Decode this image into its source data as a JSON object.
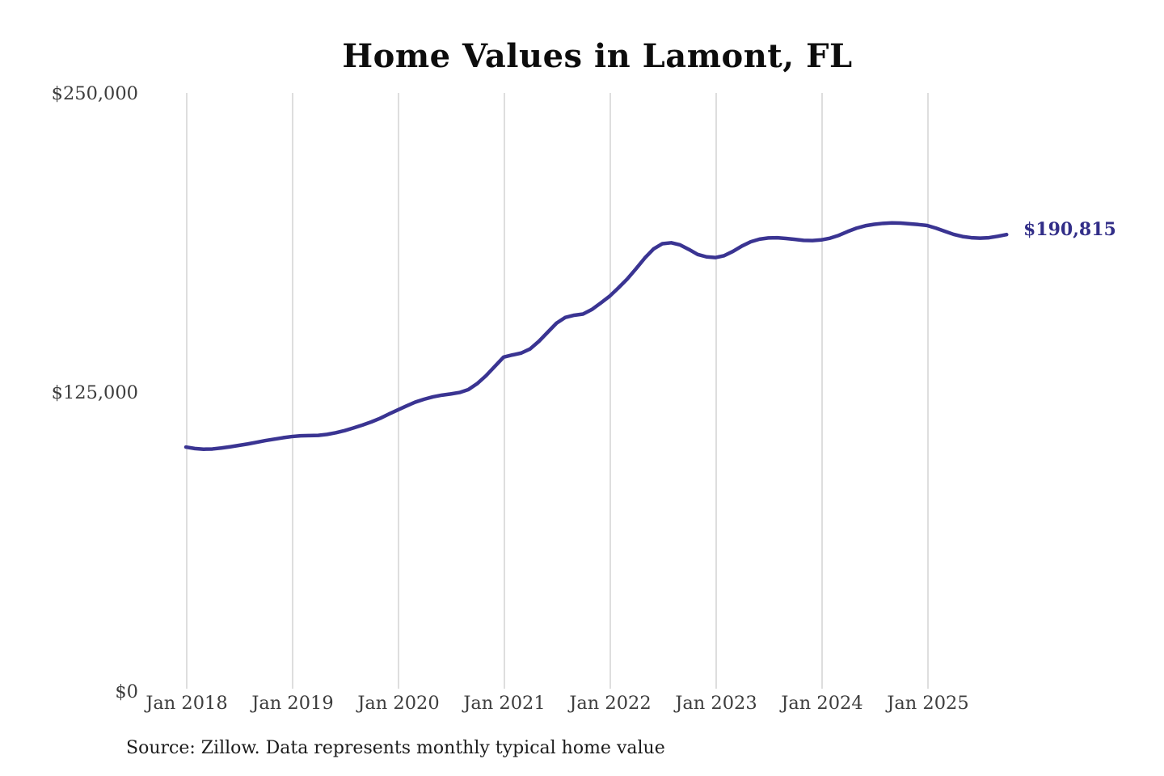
{
  "chart": {
    "background_color": "#ffffff",
    "gridline_color": "#cccccc",
    "tick_label_color": "#3d3d3d",
    "title_color": "#0d0d0d",
    "annotation_color": "#322e88"
  },
  "chart_data": {
    "type": "line",
    "title": "Home Values in Lamont, FL",
    "source_note": "Source: Zillow. Data represents monthly typical home value",
    "xlabel": "",
    "ylabel": "",
    "x_tick_labels": [
      "Jan 2018",
      "Jan 2019",
      "Jan 2020",
      "Jan 2021",
      "Jan 2022",
      "Jan 2023",
      "Jan 2024",
      "Jan 2025"
    ],
    "y_tick_labels": [
      "$0",
      "$125,000",
      "$250,000"
    ],
    "y_tick_values": [
      0,
      125000,
      250000
    ],
    "ylim": [
      0,
      250000
    ],
    "x_start": "2018-01",
    "x_end": "2025-10",
    "frequency": "monthly",
    "grid": "vertical-year-lines-only",
    "legend": "none",
    "line_color": "#3a3492",
    "final_value": 190815,
    "final_value_label": "$190,815",
    "series": [
      {
        "name": "Typical home value",
        "values": [
          102000,
          101400,
          101100,
          101200,
          101600,
          102100,
          102700,
          103300,
          104000,
          104700,
          105300,
          105900,
          106400,
          106700,
          106800,
          106900,
          107300,
          108000,
          108900,
          110000,
          111200,
          112500,
          114000,
          115800,
          117500,
          119200,
          120800,
          122000,
          123000,
          123700,
          124200,
          124800,
          126000,
          128500,
          131800,
          135700,
          139600,
          140500,
          141300,
          143000,
          146200,
          150000,
          153800,
          156200,
          157100,
          157600,
          159500,
          162200,
          165000,
          168500,
          172200,
          176500,
          181000,
          184800,
          187000,
          187400,
          186500,
          184600,
          182500,
          181500,
          181200,
          182000,
          183800,
          186000,
          187800,
          188900,
          189400,
          189500,
          189200,
          188800,
          188400,
          188300,
          188600,
          189300,
          190500,
          192100,
          193500,
          194500,
          195100,
          195500,
          195700,
          195600,
          195300,
          195000,
          194600,
          193500,
          192200,
          190900,
          190000,
          189500,
          189300,
          189500,
          190100,
          190815
        ]
      }
    ]
  }
}
